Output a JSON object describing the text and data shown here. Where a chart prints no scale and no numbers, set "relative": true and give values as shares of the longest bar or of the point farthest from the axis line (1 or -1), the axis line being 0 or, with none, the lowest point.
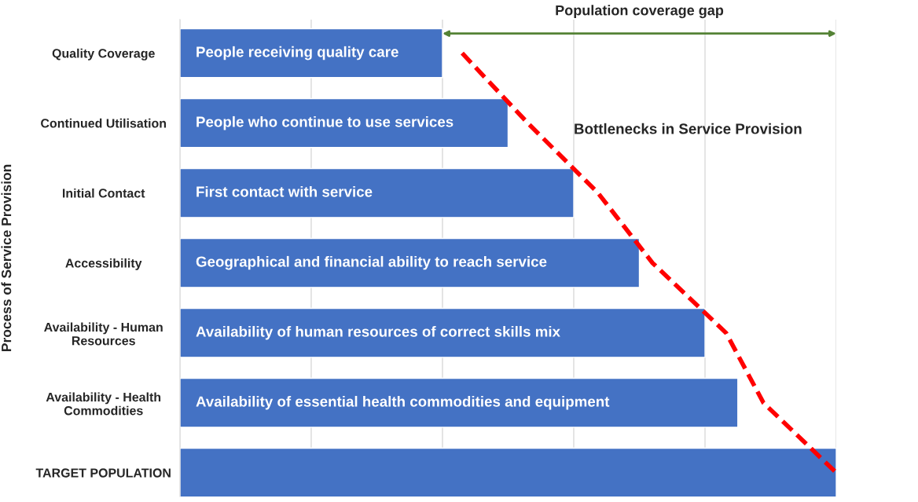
{
  "chart_data": {
    "type": "bar",
    "orientation": "horizontal",
    "relative": true,
    "ylabel": "Process of Service Provision",
    "categories": [
      "Quality Coverage",
      "Continued Utilisation",
      "Initial Contact",
      "Accessibility",
      "Availability - Human\nResources",
      "Availability - Health\nCommodities",
      "TARGET POPULATION"
    ],
    "series": [
      {
        "color": "#4472c4",
        "values": [
          0.4,
          0.5,
          0.6,
          0.7,
          0.8,
          0.85,
          1.0
        ]
      },
      {
        "type": "line",
        "name": "Bottlenecks in Service Provision",
        "color": "#ff0000",
        "line_style": "dashed",
        "values": [
          0.43,
          0.53,
          0.637,
          0.72,
          0.832,
          0.889,
          1.0
        ]
      }
    ],
    "annotations": [
      "Population coverage gap",
      "People receiving quality care",
      "People who continue to use services",
      "First contact with service",
      "Geographical and financial ability to reach service",
      "Availability of human resources of correct skills mix",
      "Availability of essential health commodities and equipment"
    ],
    "grid": "x"
  }
}
